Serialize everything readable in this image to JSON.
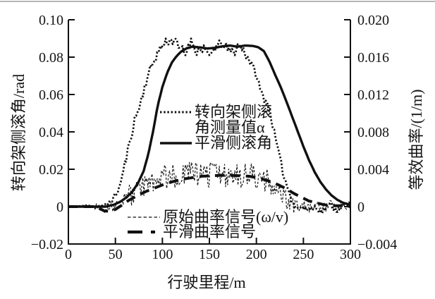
{
  "colors": {
    "ink": "#101010",
    "background": "#ffffff",
    "hairline": "#b6b6b6"
  },
  "chart_data": {
    "type": "line",
    "title": "",
    "xlabel": "行驶里程/m",
    "ylabel_left": "转向架侧滚角/rad",
    "ylabel_right": "等效曲率/(1/m)",
    "grid": false,
    "x_range": [
      0,
      300
    ],
    "x_ticks": [
      0,
      50,
      100,
      150,
      200,
      250,
      300
    ],
    "x_tick_labels": [
      "0",
      "50",
      "100",
      "150",
      "200",
      "250",
      "300"
    ],
    "y_left_range": [
      -0.02,
      0.1
    ],
    "y_left_ticks": [
      0.1,
      0.08,
      0.06,
      0.04,
      0.02,
      0,
      -0.02
    ],
    "y_left_tick_labels": [
      "0.10",
      "0.08",
      "0.06",
      "0.04",
      "0.02",
      "0",
      "−0.02"
    ],
    "y_right_range": [
      -0.004,
      0.02
    ],
    "y_right_ticks": [
      0.02,
      0.016,
      0.012,
      0.008,
      0.004,
      0,
      -0.004
    ],
    "y_right_tick_labels": [
      "0.020",
      "0.016",
      "0.012",
      "0.008",
      "0.004",
      "0",
      "−0.004"
    ],
    "legend_roll": {
      "entry1_line1": "转向架侧滚",
      "entry1_line2": "角测量值α",
      "entry2": "平滑侧滚角"
    },
    "legend_curvature": {
      "entry1": "原始曲率信号(ω/v)",
      "entry2": "平滑曲率信号"
    },
    "series": [
      {
        "id": "raw-curvature-signal",
        "label": "原始曲率信号(ω/v)",
        "axis": "right",
        "style": "thin-dashed",
        "points": [
          [
            0,
            0
          ],
          [
            30,
            0
          ],
          [
            34,
            -0.0001
          ],
          [
            38,
            -0.0003
          ],
          [
            44,
            -0.0002
          ],
          [
            50,
            0.0001
          ],
          [
            56,
            0.0005
          ],
          [
            62,
            0.001
          ],
          [
            70,
            0.0014
          ],
          [
            78,
            0.0019
          ],
          [
            86,
            0.0025
          ],
          [
            94,
            0.0029
          ],
          [
            102,
            0.0032
          ],
          [
            112,
            0.0034
          ],
          [
            125,
            0.0035
          ],
          [
            140,
            0.0034
          ],
          [
            155,
            0.0035
          ],
          [
            170,
            0.0034
          ],
          [
            185,
            0.0034
          ],
          [
            195,
            0.0033
          ],
          [
            205,
            0.003
          ],
          [
            212,
            0.0026
          ],
          [
            219,
            0.0019
          ],
          [
            226,
            0.0012
          ],
          [
            233,
            0.0006
          ],
          [
            240,
            0.0002
          ],
          [
            248,
            0
          ],
          [
            260,
            -0.0001
          ],
          [
            272,
            0.0001
          ],
          [
            285,
            0
          ],
          [
            300,
            0.0001
          ]
        ],
        "noise": {
          "seed": 9,
          "step": 1.1,
          "amp_regions": [
            [
              28,
              45,
              0.0004
            ],
            [
              45,
              60,
              0.0007
            ],
            [
              60,
              100,
              0.0012
            ],
            [
              100,
              212,
              0.0014
            ],
            [
              212,
              240,
              0.001
            ],
            [
              240,
              300,
              0.0006
            ]
          ]
        }
      },
      {
        "id": "measured-roll-angle",
        "label": "转向架侧滚角测量值α",
        "axis": "left",
        "style": "dotted",
        "points": [
          [
            0,
            0
          ],
          [
            15,
            0.0003
          ],
          [
            22,
            0.0008
          ],
          [
            28,
            0
          ],
          [
            34,
            0.0005
          ],
          [
            40,
            0.001
          ],
          [
            45,
            0.003
          ],
          [
            50,
            0.006
          ],
          [
            54,
            0.01
          ],
          [
            58,
            0.018
          ],
          [
            62,
            0.027
          ],
          [
            66,
            0.036
          ],
          [
            70,
            0.046
          ],
          [
            74,
            0.051
          ],
          [
            78,
            0.058
          ],
          [
            82,
            0.066
          ],
          [
            86,
            0.072
          ],
          [
            90,
            0.077
          ],
          [
            94,
            0.081
          ],
          [
            98,
            0.085
          ],
          [
            102,
            0.0875
          ],
          [
            106,
            0.089
          ],
          [
            110,
            0.0885
          ],
          [
            114,
            0.0905
          ],
          [
            117,
            0.083
          ],
          [
            120,
            0.0855
          ],
          [
            124,
            0.0805
          ],
          [
            128,
            0.0875
          ],
          [
            132,
            0.088
          ],
          [
            136,
            0.0835
          ],
          [
            140,
            0.083
          ],
          [
            144,
            0.086
          ],
          [
            148,
            0.0795
          ],
          [
            152,
            0.0815
          ],
          [
            156,
            0.0855
          ],
          [
            160,
            0.086
          ],
          [
            164,
            0.0875
          ],
          [
            168,
            0.0845
          ],
          [
            172,
            0.0835
          ],
          [
            176,
            0.0825
          ],
          [
            180,
            0.086
          ],
          [
            184,
            0.0855
          ],
          [
            188,
            0.0825
          ],
          [
            192,
            0.079
          ],
          [
            196,
            0.0745
          ],
          [
            200,
            0.0705
          ],
          [
            204,
            0.0625
          ],
          [
            208,
            0.058
          ],
          [
            212,
            0.0555
          ],
          [
            216,
            0.047
          ],
          [
            220,
            0.037
          ],
          [
            224,
            0.028
          ],
          [
            228,
            0.019
          ],
          [
            232,
            0.012
          ],
          [
            236,
            0.006
          ],
          [
            240,
            0.0015
          ],
          [
            244,
            -0.0015
          ],
          [
            248,
            0.0005
          ],
          [
            252,
            -0.002
          ],
          [
            256,
            -0.0005
          ],
          [
            260,
            -0.0015
          ],
          [
            264,
            0.0005
          ],
          [
            268,
            -0.003
          ],
          [
            272,
            -0.0015
          ],
          [
            276,
            0
          ],
          [
            280,
            0.0015
          ],
          [
            284,
            -0.002
          ],
          [
            288,
            -0.001
          ],
          [
            292,
            0.0005
          ],
          [
            296,
            0.0005
          ],
          [
            300,
            0.002
          ]
        ],
        "noise": {
          "seed": 11,
          "step": 1.5,
          "amp_regions": [
            [
              0,
              15,
              0.0002
            ],
            [
              15,
              40,
              0.0006
            ],
            [
              40,
              60,
              0.0015
            ],
            [
              60,
              95,
              0.0025
            ],
            [
              95,
              192,
              0.0028
            ],
            [
              192,
              215,
              0.0022
            ],
            [
              215,
              238,
              0.0018
            ],
            [
              238,
              300,
              0.0019
            ]
          ]
        }
      },
      {
        "id": "smoothed-curvature-signal",
        "label": "平滑曲率信号",
        "axis": "right",
        "style": "thick-dashed",
        "points": [
          [
            0,
            0
          ],
          [
            28,
            0
          ],
          [
            33,
            -0.0002
          ],
          [
            38,
            -0.00045
          ],
          [
            44,
            -0.0005
          ],
          [
            50,
            -0.0003
          ],
          [
            56,
            0.0001
          ],
          [
            63,
            0.0006
          ],
          [
            72,
            0.0011
          ],
          [
            82,
            0.0016
          ],
          [
            92,
            0.002
          ],
          [
            102,
            0.0024
          ],
          [
            112,
            0.0027
          ],
          [
            122,
            0.00295
          ],
          [
            132,
            0.0031
          ],
          [
            142,
            0.00325
          ],
          [
            152,
            0.0033
          ],
          [
            162,
            0.00335
          ],
          [
            172,
            0.00335
          ],
          [
            182,
            0.0033
          ],
          [
            192,
            0.00325
          ],
          [
            200,
            0.0031
          ],
          [
            208,
            0.0029
          ],
          [
            216,
            0.00265
          ],
          [
            224,
            0.0023
          ],
          [
            232,
            0.0019
          ],
          [
            240,
            0.0014
          ],
          [
            248,
            0.001
          ],
          [
            256,
            0.0006
          ],
          [
            264,
            0.0004
          ],
          [
            272,
            0.0002
          ],
          [
            280,
            0.0001
          ],
          [
            290,
            0.0001
          ],
          [
            300,
            0
          ]
        ]
      },
      {
        "id": "smoothed-roll-angle",
        "label": "平滑侧滚角",
        "axis": "left",
        "style": "solid",
        "points": [
          [
            0,
            0
          ],
          [
            40,
            0
          ],
          [
            48,
            0.001
          ],
          [
            55,
            0.0025
          ],
          [
            62,
            0.005
          ],
          [
            68,
            0.008
          ],
          [
            74,
            0.0125
          ],
          [
            80,
            0.019
          ],
          [
            85,
            0.028
          ],
          [
            90,
            0.04
          ],
          [
            95,
            0.054
          ],
          [
            100,
            0.064
          ],
          [
            105,
            0.0715
          ],
          [
            110,
            0.077
          ],
          [
            115,
            0.0805
          ],
          [
            120,
            0.083
          ],
          [
            126,
            0.0848
          ],
          [
            132,
            0.0856
          ],
          [
            140,
            0.0852
          ],
          [
            148,
            0.0846
          ],
          [
            156,
            0.085
          ],
          [
            164,
            0.0858
          ],
          [
            172,
            0.0862
          ],
          [
            180,
            0.0856
          ],
          [
            188,
            0.0862
          ],
          [
            196,
            0.086
          ],
          [
            202,
            0.0853
          ],
          [
            208,
            0.0832
          ],
          [
            214,
            0.0775
          ],
          [
            220,
            0.0705
          ],
          [
            226,
            0.0638
          ],
          [
            232,
            0.0562
          ],
          [
            238,
            0.0482
          ],
          [
            244,
            0.0402
          ],
          [
            250,
            0.0322
          ],
          [
            256,
            0.0248
          ],
          [
            262,
            0.0185
          ],
          [
            268,
            0.0133
          ],
          [
            274,
            0.0092
          ],
          [
            280,
            0.006
          ],
          [
            286,
            0.0037
          ],
          [
            292,
            0.0021
          ],
          [
            300,
            0.001
          ]
        ]
      }
    ]
  }
}
